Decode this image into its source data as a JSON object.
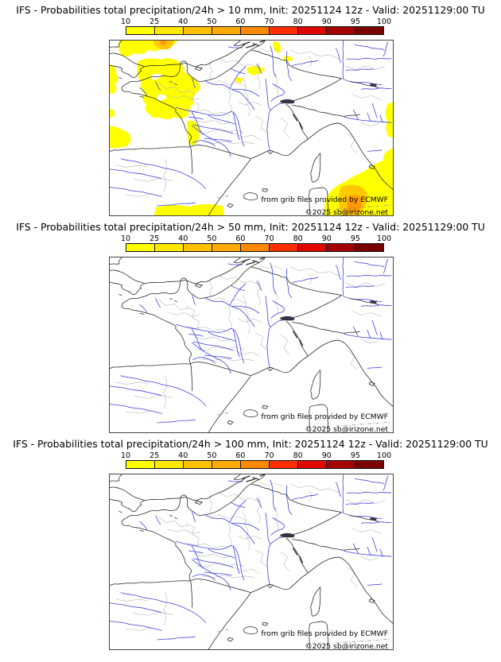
{
  "panels": [
    {
      "id": "precip-10mm",
      "title": "IFS - Probabilities total precipitation/24h > 10 mm, Init: 20251124 12z - Valid: 20251129:00 TU"
    },
    {
      "id": "precip-50mm",
      "title": "IFS - Probabilities total precipitation/24h > 50 mm, Init: 20251124 12z - Valid: 20251129:00 TU"
    },
    {
      "id": "precip-100mm",
      "title": "IFS - Probabilities total precipitation/24h > 100 mm, Init: 20251124 12z - Valid: 20251129:00 TU"
    }
  ],
  "colorbar": {
    "tick_labels": [
      "10",
      "25",
      "40",
      "50",
      "60",
      "70",
      "80",
      "90",
      "95",
      "100"
    ],
    "segment_colors": [
      "#ffff00",
      "#ffe800",
      "#ffc000",
      "#ffaa00",
      "#ff8a00",
      "#ff2e00",
      "#df0700",
      "#a50000",
      "#7a0000"
    ]
  },
  "map": {
    "attribution_line1": "from grib files provided by ECMWF",
    "attribution_line2": "©2025 sb@irizone.net",
    "colors": {
      "river": "#4040dd",
      "coastline": "#2b2b2b",
      "admin_border": "#b8b8b8",
      "overlay_low": "#ffff00",
      "overlay_mid": "#ffc800",
      "overlay_high": "#ff9a00",
      "water_lake": "#333344"
    }
  }
}
